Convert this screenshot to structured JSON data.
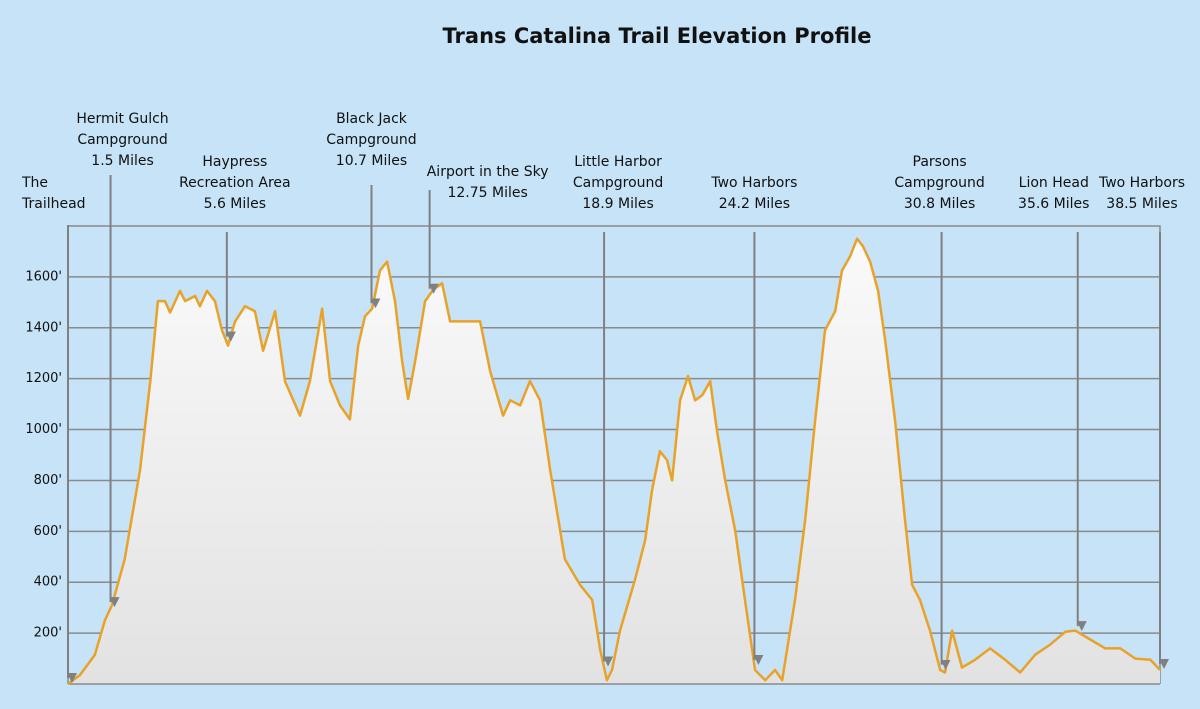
{
  "chart_data": {
    "type": "area",
    "title": "Trans Catalina Trail Elevation Profile",
    "x": [
      0,
      0.42,
      0.95,
      1.3,
      1.55,
      2.0,
      2.54,
      2.9,
      3.17,
      3.42,
      3.6,
      3.95,
      4.13,
      4.48,
      4.65,
      4.9,
      5.18,
      5.43,
      5.64,
      5.89,
      6.24,
      6.59,
      6.88,
      7.3,
      7.65,
      8.18,
      8.53,
      8.96,
      9.24,
      9.59,
      9.94,
      10.23,
      10.47,
      10.72,
      11.0,
      11.25,
      11.53,
      11.78,
      11.99,
      12.24,
      12.59,
      12.88,
      13.19,
      13.47,
      13.82,
      14.17,
      14.53,
      14.88,
      15.34,
      15.59,
      15.94,
      16.29,
      16.64,
      17.0,
      17.52,
      18.05,
      18.48,
      18.76,
      19.0,
      19.18,
      19.46,
      19.99,
      20.35,
      20.59,
      20.87,
      21.12,
      21.3,
      21.58,
      21.86,
      22.11,
      22.36,
      22.64,
      22.88,
      23.17,
      23.52,
      23.87,
      24.22,
      24.58,
      24.93,
      25.18,
      25.63,
      25.99,
      26.34,
      26.69,
      27.05,
      27.29,
      27.57,
      27.82,
      28.03,
      28.28,
      28.56,
      28.81,
      29.16,
      29.51,
      29.76,
      30.04,
      30.39,
      30.75,
      30.92,
      31.17,
      31.52,
      31.98,
      32.51,
      33.04,
      33.57,
      34.1,
      34.63,
      35.16,
      35.51,
      36.04,
      36.57,
      37.1,
      37.63,
      38.16,
      38.5
    ],
    "values": [
      0,
      35,
      115,
      250,
      310,
      490,
      840,
      1190,
      1505,
      1505,
      1460,
      1545,
      1505,
      1525,
      1485,
      1545,
      1505,
      1390,
      1330,
      1425,
      1485,
      1465,
      1310,
      1465,
      1190,
      1055,
      1190,
      1475,
      1190,
      1095,
      1040,
      1330,
      1445,
      1475,
      1625,
      1660,
      1505,
      1270,
      1120,
      1270,
      1505,
      1550,
      1575,
      1425,
      1425,
      1425,
      1425,
      1230,
      1055,
      1115,
      1095,
      1190,
      1115,
      840,
      490,
      390,
      330,
      135,
      15,
      55,
      210,
      410,
      565,
      760,
      915,
      880,
      800,
      1115,
      1210,
      1115,
      1135,
      1190,
      995,
      800,
      605,
      330,
      55,
      15,
      55,
      15,
      330,
      645,
      1035,
      1390,
      1465,
      1625,
      1680,
      1750,
      1720,
      1660,
      1545,
      1350,
      1035,
      645,
      390,
      330,
      210,
      55,
      45,
      210,
      65,
      95,
      140,
      95,
      45,
      115,
      155,
      205,
      210,
      175,
      140,
      140,
      100,
      95,
      55
    ],
    "color": "#e9a227",
    "xlim": [
      0,
      38.5
    ],
    "ylim": [
      0,
      1800
    ],
    "yticks": [
      {
        "value": 200,
        "label": "200'"
      },
      {
        "value": 400,
        "label": "400'"
      },
      {
        "value": 600,
        "label": "600'"
      },
      {
        "value": 800,
        "label": "800'"
      },
      {
        "value": 1000,
        "label": "1000'"
      },
      {
        "value": 1200,
        "label": "1200'"
      },
      {
        "value": 1400,
        "label": "1400'"
      },
      {
        "value": 1600,
        "label": "1600'"
      }
    ],
    "grid": true,
    "annotations": [
      {
        "label": [
          "The",
          "Trailhead"
        ],
        "x": 0
      },
      {
        "label": [
          "Hermit Gulch",
          "Campground",
          "1.5 Miles"
        ],
        "x": 1.5
      },
      {
        "label": [
          "Haypress",
          "Recreation Area",
          "5.6 Miles"
        ],
        "x": 5.6
      },
      {
        "label": [
          "Black Jack",
          "Campground",
          "10.7 Miles"
        ],
        "x": 10.7
      },
      {
        "label": [
          "Airport in the Sky",
          "12.75 Miles"
        ],
        "x": 12.75
      },
      {
        "label": [
          "Little Harbor",
          "Campground",
          "18.9 Miles"
        ],
        "x": 18.9
      },
      {
        "label": [
          "Two Harbors",
          "24.2 Miles"
        ],
        "x": 24.2
      },
      {
        "label": [
          "Parsons",
          "Campground",
          "30.8 Miles"
        ],
        "x": 30.8
      },
      {
        "label": [
          "Lion Head",
          "35.6 Miles"
        ],
        "x": 35.6
      },
      {
        "label": [
          "Two Harbors",
          "38.5 Miles"
        ],
        "x": 38.5
      }
    ]
  }
}
